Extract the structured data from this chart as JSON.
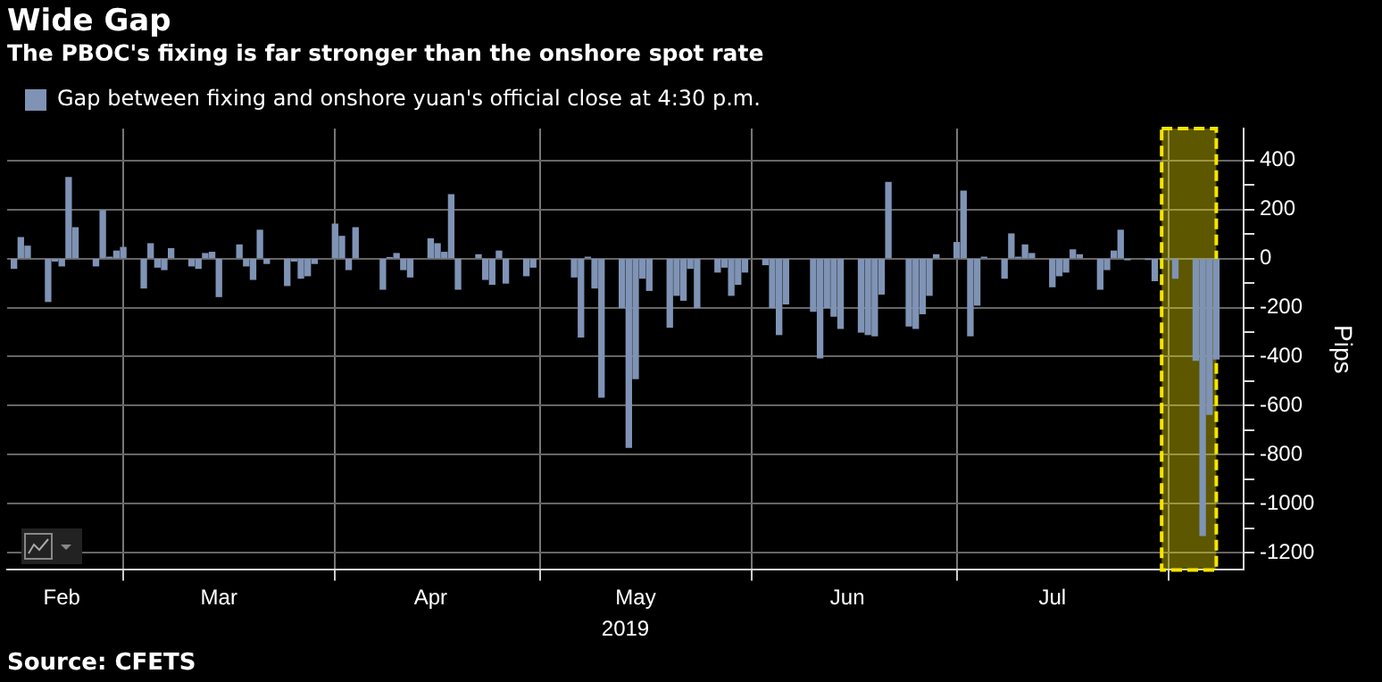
{
  "chart_data": {
    "type": "bar",
    "title": "Wide Gap",
    "subtitle": "The PBOC's fixing is far stronger than the onshore spot rate",
    "xlabel": "2019",
    "ylabel": "Pips",
    "annotations": [
      "Source: CFETS"
    ],
    "x": [
      "2019-02-13",
      "2019-02-14",
      "2019-02-15",
      "2019-02-18",
      "2019-02-19",
      "2019-02-20",
      "2019-02-21",
      "2019-02-22",
      "2019-02-25",
      "2019-02-26",
      "2019-02-27",
      "2019-02-28",
      "2019-03-01",
      "2019-03-04",
      "2019-03-05",
      "2019-03-06",
      "2019-03-07",
      "2019-03-08",
      "2019-03-11",
      "2019-03-12",
      "2019-03-13",
      "2019-03-14",
      "2019-03-15",
      "2019-03-18",
      "2019-03-19",
      "2019-03-20",
      "2019-03-21",
      "2019-03-22",
      "2019-03-25",
      "2019-03-26",
      "2019-03-27",
      "2019-03-28",
      "2019-03-29",
      "2019-04-01",
      "2019-04-02",
      "2019-04-03",
      "2019-04-04",
      "2019-04-08",
      "2019-04-09",
      "2019-04-10",
      "2019-04-11",
      "2019-04-12",
      "2019-04-15",
      "2019-04-16",
      "2019-04-17",
      "2019-04-18",
      "2019-04-19",
      "2019-04-22",
      "2019-04-23",
      "2019-04-24",
      "2019-04-25",
      "2019-04-26",
      "2019-04-29",
      "2019-04-30",
      "2019-05-06",
      "2019-05-07",
      "2019-05-08",
      "2019-05-09",
      "2019-05-10",
      "2019-05-13",
      "2019-05-14",
      "2019-05-15",
      "2019-05-16",
      "2019-05-17",
      "2019-05-20",
      "2019-05-21",
      "2019-05-22",
      "2019-05-23",
      "2019-05-24",
      "2019-05-27",
      "2019-05-28",
      "2019-05-29",
      "2019-05-30",
      "2019-05-31",
      "2019-06-03",
      "2019-06-04",
      "2019-06-05",
      "2019-06-06",
      "2019-06-10",
      "2019-06-11",
      "2019-06-12",
      "2019-06-13",
      "2019-06-14",
      "2019-06-17",
      "2019-06-18",
      "2019-06-19",
      "2019-06-20",
      "2019-06-21",
      "2019-06-24",
      "2019-06-25",
      "2019-06-26",
      "2019-06-27",
      "2019-06-28",
      "2019-07-01",
      "2019-07-02",
      "2019-07-03",
      "2019-07-04",
      "2019-07-05",
      "2019-07-08",
      "2019-07-09",
      "2019-07-10",
      "2019-07-11",
      "2019-07-12",
      "2019-07-15",
      "2019-07-16",
      "2019-07-17",
      "2019-07-18",
      "2019-07-19",
      "2019-07-22",
      "2019-07-23",
      "2019-07-24",
      "2019-07-25",
      "2019-07-26",
      "2019-07-29",
      "2019-07-30",
      "2019-07-31",
      "2019-08-01",
      "2019-08-02",
      "2019-08-05",
      "2019-08-06",
      "2019-08-07",
      "2019-08-08"
    ],
    "series": [
      {
        "name": "Gap between fixing and onshore yuan's official close at 4:30 p.m.",
        "color": "#7f93b5",
        "values": [
          -40,
          85,
          50,
          -175,
          -10,
          -30,
          330,
          125,
          -30,
          195,
          5,
          30,
          45,
          -120,
          60,
          -35,
          -45,
          40,
          -30,
          -40,
          20,
          25,
          -155,
          55,
          -30,
          -85,
          115,
          -20,
          -110,
          -10,
          -80,
          -70,
          -20,
          140,
          90,
          -45,
          125,
          -125,
          3,
          20,
          -45,
          -75,
          80,
          60,
          25,
          260,
          -125,
          15,
          -85,
          -105,
          30,
          -100,
          -70,
          -35,
          -75,
          -320,
          5,
          -120,
          -565,
          -200,
          -770,
          -490,
          -80,
          -130,
          -280,
          -150,
          -170,
          -40,
          -200,
          -55,
          -35,
          -150,
          -105,
          -55,
          -25,
          -200,
          -310,
          -185,
          -215,
          -405,
          -200,
          -235,
          -285,
          -300,
          -310,
          -315,
          -145,
          310,
          -275,
          -285,
          -225,
          -150,
          15,
          65,
          275,
          -315,
          -190,
          5,
          -80,
          100,
          5,
          55,
          20,
          -115,
          -70,
          -55,
          35,
          15,
          -125,
          -45,
          30,
          115,
          -5,
          -3,
          -90,
          null,
          -5,
          -80,
          -415,
          -1130,
          -635,
          -410
        ]
      }
    ],
    "xlim": [
      "2019-02-12",
      "2019-08-12"
    ],
    "xticks": [
      {
        "value": "2019-02-20",
        "label": "Feb"
      },
      {
        "value": "2019-03-01",
        "label": null
      },
      {
        "value": "2019-03-15",
        "label": "Mar"
      },
      {
        "value": "2019-04-01",
        "label": null
      },
      {
        "value": "2019-04-15",
        "label": "Apr"
      },
      {
        "value": "2019-05-01",
        "label": null
      },
      {
        "value": "2019-05-15",
        "label": "May"
      },
      {
        "value": "2019-06-01",
        "label": null
      },
      {
        "value": "2019-06-15",
        "label": "Jun"
      },
      {
        "value": "2019-07-01",
        "label": null
      },
      {
        "value": "2019-07-15",
        "label": "Jul"
      },
      {
        "value": "2019-08-01",
        "label": null
      }
    ],
    "ylim": [
      -1270,
      530
    ],
    "yticks": [
      400,
      {
        "value": 300,
        "label": null
      },
      200,
      {
        "value": 100,
        "label": null
      },
      0,
      {
        "value": -100,
        "label": null
      },
      -200,
      {
        "value": -300,
        "label": null
      },
      -400,
      {
        "value": -500,
        "label": null
      },
      -600,
      {
        "value": -700,
        "label": null
      },
      -800,
      {
        "value": -900,
        "label": null
      },
      -1000,
      {
        "value": -1100,
        "label": null
      },
      -1200
    ],
    "bands": [
      {
        "axis": "x",
        "from": "2019-07-31",
        "to": "2019-08-08",
        "color": "#f5e600"
      }
    ],
    "grid": true,
    "legend": "top left"
  }
}
